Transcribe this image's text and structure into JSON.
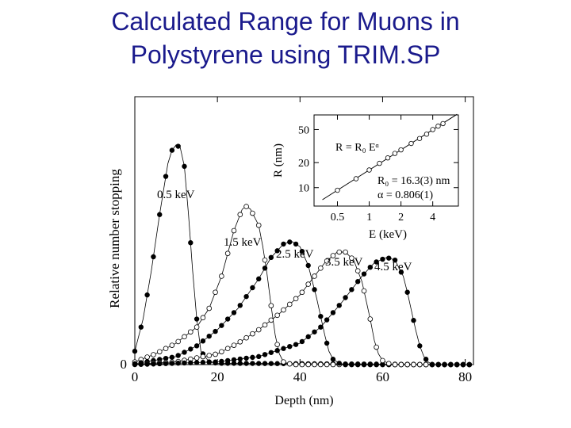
{
  "slide": {
    "title_line1": "Calculated Range for Muons in",
    "title_line2": "Polystyrene using TRIM.SP"
  },
  "chart_data": [
    {
      "type": "line",
      "xlabel": "Depth (nm)",
      "ylabel": "Relative number stopping",
      "xlim": [
        0,
        82
      ],
      "ylim": [
        0,
        1.0
      ],
      "x_ticks": [
        0,
        20,
        40,
        60,
        80
      ],
      "y_ticks": [
        0
      ],
      "marker_interval_nm": 1.5,
      "series": [
        {
          "name": "0.5 keV",
          "marker": "filled",
          "x": [
            0,
            2,
            4,
            6,
            8,
            9,
            10,
            11,
            12,
            13,
            14,
            15,
            16,
            18,
            20,
            82
          ],
          "y": [
            0.05,
            0.17,
            0.35,
            0.56,
            0.75,
            0.8,
            0.82,
            0.81,
            0.74,
            0.56,
            0.35,
            0.17,
            0.05,
            0.01,
            0.005,
            0
          ]
        },
        {
          "name": "1.5 keV",
          "marker": "open",
          "x": [
            0,
            5,
            10,
            15,
            18,
            21,
            24,
            26,
            27,
            28,
            30,
            31,
            32,
            33,
            34,
            35,
            36,
            38,
            82
          ],
          "y": [
            0.01,
            0.04,
            0.08,
            0.14,
            0.21,
            0.33,
            0.5,
            0.58,
            0.59,
            0.58,
            0.52,
            0.44,
            0.34,
            0.22,
            0.11,
            0.04,
            0.01,
            0,
            0
          ]
        },
        {
          "name": "2.5 keV",
          "marker": "filled",
          "x": [
            0,
            10,
            15,
            20,
            25,
            30,
            33,
            36,
            38,
            40,
            42,
            44,
            46,
            47,
            48,
            50,
            82
          ],
          "y": [
            0.003,
            0.03,
            0.07,
            0.13,
            0.21,
            0.32,
            0.4,
            0.45,
            0.46,
            0.44,
            0.37,
            0.25,
            0.11,
            0.05,
            0.02,
            0,
            0
          ]
        },
        {
          "name": "3.5 keV",
          "marker": "open",
          "x": [
            0,
            10,
            20,
            25,
            30,
            35,
            40,
            43,
            46,
            49,
            51,
            53,
            55,
            57,
            58,
            59,
            60,
            62,
            82
          ],
          "y": [
            0.001,
            0.01,
            0.04,
            0.08,
            0.13,
            0.19,
            0.26,
            0.32,
            0.38,
            0.42,
            0.42,
            0.39,
            0.31,
            0.17,
            0.09,
            0.04,
            0.015,
            0,
            0
          ]
        },
        {
          "name": "4.5 keV",
          "marker": "filled",
          "x": [
            0,
            20,
            30,
            40,
            45,
            50,
            55,
            58,
            61,
            63,
            65,
            66,
            67,
            68,
            69,
            70,
            71,
            72,
            82
          ],
          "y": [
            0,
            0.01,
            0.03,
            0.08,
            0.14,
            0.23,
            0.33,
            0.38,
            0.4,
            0.39,
            0.33,
            0.27,
            0.2,
            0.13,
            0.07,
            0.03,
            0.01,
            0,
            0
          ]
        }
      ],
      "series_labels": [
        "0.5 keV",
        "1.5 keV",
        "2.5 keV",
        "3.5 keV",
        "4.5 keV"
      ]
    },
    {
      "type": "line",
      "scale": "log-log",
      "xlabel": "E (keV)",
      "ylabel": "R (nm)",
      "x_ticks": [
        0.5,
        1,
        2,
        4
      ],
      "y_ticks": [
        10,
        20,
        50
      ],
      "xlim": [
        0.3,
        7
      ],
      "ylim": [
        6,
        75
      ],
      "fit": {
        "R0": 16.3,
        "alpha": 0.806
      },
      "points": {
        "x": [
          0.5,
          0.75,
          1.0,
          1.25,
          1.5,
          1.75,
          2.0,
          2.5,
          3.0,
          3.5,
          4.0,
          4.5,
          5.0
        ],
        "y": [
          9.3,
          12.8,
          16.3,
          19.6,
          22.8,
          25.8,
          28.5,
          34,
          39,
          44,
          50,
          55,
          59
        ]
      },
      "annotations": {
        "formula": "R = R₀ Eᵅ",
        "r0_text": "R₀ = 16.3(3) nm",
        "alpha_text": "α = 0.806(1)"
      }
    }
  ]
}
